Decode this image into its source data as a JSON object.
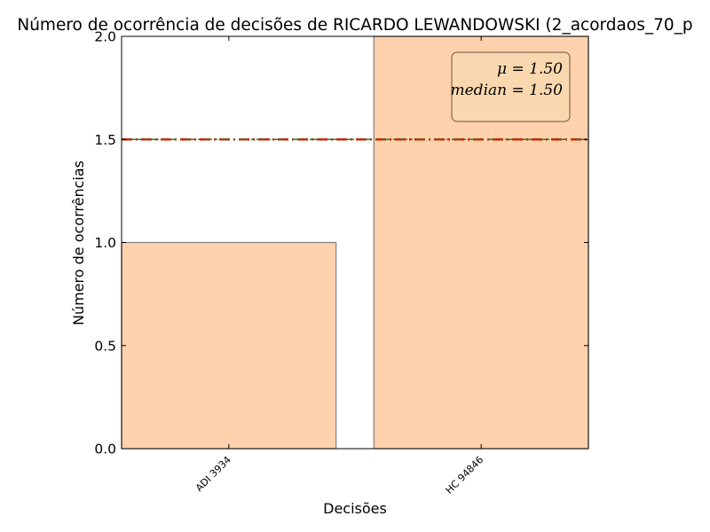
{
  "chart_data": {
    "type": "bar",
    "title": "Número de ocorrência de decisões de RICARDO LEWANDOWSKI (2_acordaos_70_p",
    "xlabel": "Decisões",
    "ylabel": "Número de ocorrências",
    "categories": [
      "ADI 3934",
      "HC 94846"
    ],
    "values": [
      1,
      2
    ],
    "ylim": [
      0,
      2.0
    ],
    "yticks": [
      "0.0",
      "0.5",
      "1.0",
      "1.5",
      "2.0"
    ],
    "ytick_values": [
      0,
      0.5,
      1.0,
      1.5,
      2.0
    ],
    "bar_color": "#ffd1ac",
    "bar_edge_color": "#7f7f7f",
    "mean_line": {
      "value": 1.5,
      "color": "#cc2200"
    },
    "median_line": {
      "value": 1.5,
      "color": "#2e7d32"
    },
    "legend": {
      "position": "top-right",
      "mean_text": "μ = 1.50",
      "median_text": "median = 1.50",
      "background": "#f5deb3"
    },
    "grid": false
  }
}
